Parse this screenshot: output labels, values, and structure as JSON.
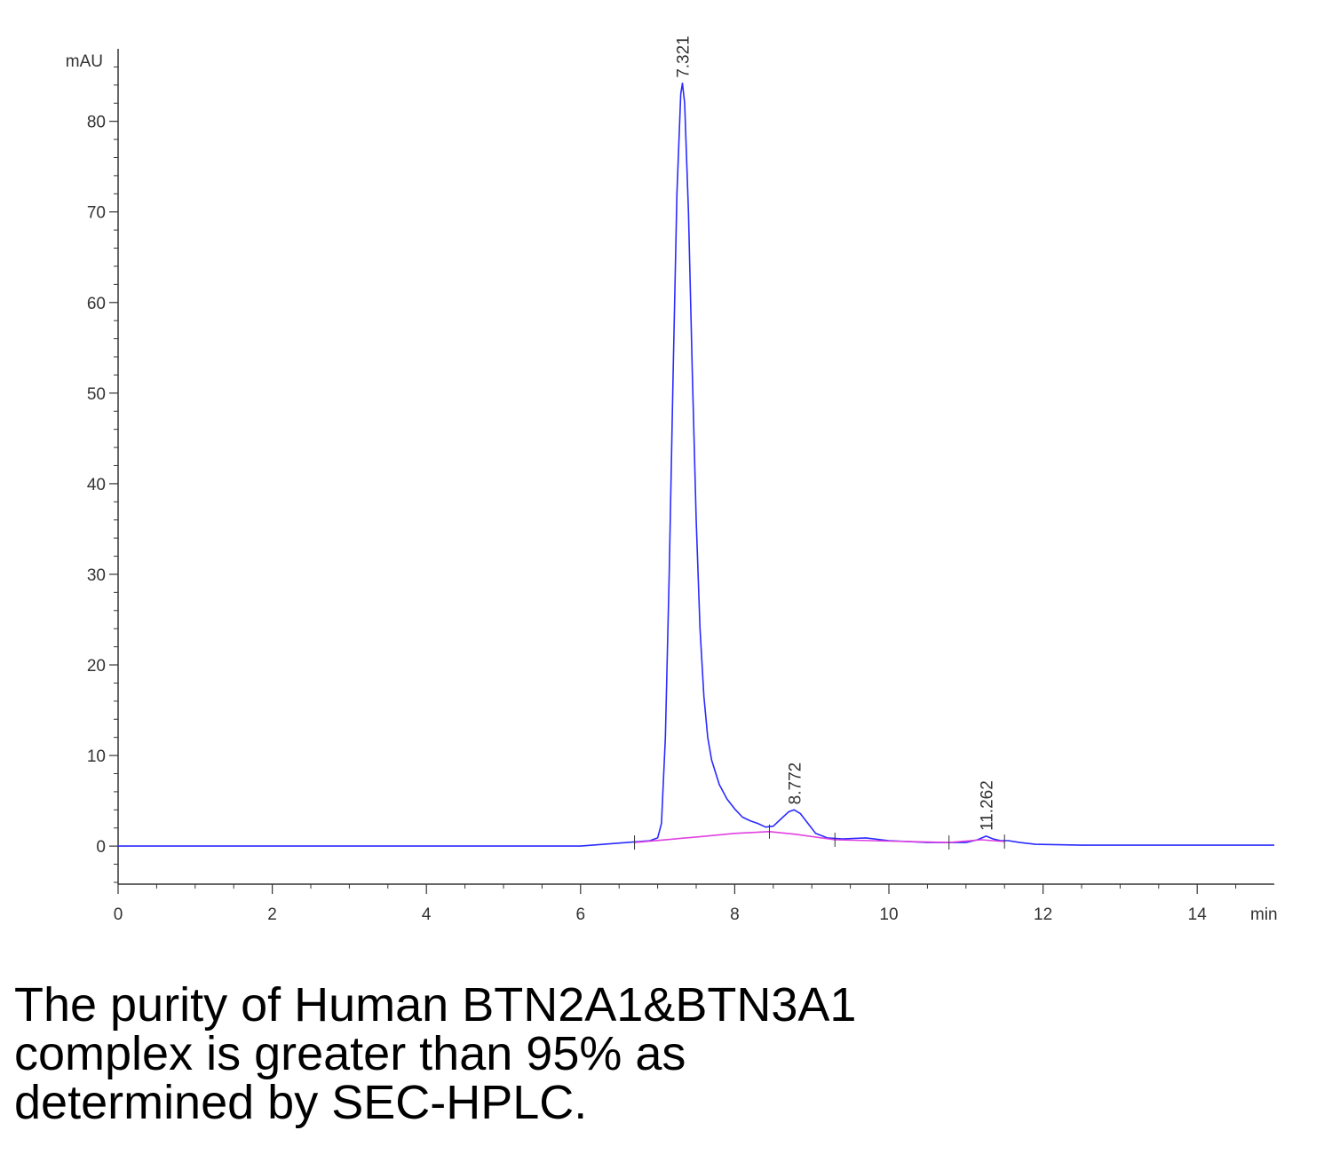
{
  "chart_data": {
    "type": "line",
    "ylabel": "mAU",
    "xlabel": "min",
    "xlim": [
      0,
      15
    ],
    "ylim": [
      -4.2,
      88
    ],
    "xticks": [
      0,
      2,
      4,
      6,
      8,
      10,
      12,
      14
    ],
    "yticks": [
      0,
      10,
      20,
      30,
      40,
      50,
      60,
      70,
      80
    ],
    "series": [
      {
        "color": "#2a2aff",
        "x": [
          0,
          6.0,
          6.3,
          6.6,
          6.9,
          7.0,
          7.05,
          7.1,
          7.15,
          7.2,
          7.25,
          7.3,
          7.321,
          7.35,
          7.4,
          7.45,
          7.5,
          7.55,
          7.6,
          7.65,
          7.7,
          7.8,
          7.9,
          8.0,
          8.1,
          8.2,
          8.3,
          8.4,
          8.5,
          8.6,
          8.7,
          8.772,
          8.85,
          8.95,
          9.05,
          9.2,
          9.4,
          9.7,
          10.0,
          10.5,
          11.0,
          11.15,
          11.262,
          11.35,
          11.45,
          11.55,
          11.7,
          11.9,
          12.5,
          15.0
        ],
        "y": [
          0,
          0,
          0.2,
          0.4,
          0.6,
          0.9,
          2.5,
          12,
          30,
          52,
          72,
          83,
          84.2,
          82,
          70,
          52,
          36,
          24,
          16.5,
          12,
          9.5,
          6.8,
          5.2,
          4.1,
          3.2,
          2.8,
          2.5,
          2.1,
          2.2,
          3.0,
          3.8,
          4.0,
          3.6,
          2.5,
          1.4,
          0.9,
          0.8,
          0.9,
          0.6,
          0.4,
          0.4,
          0.7,
          1.1,
          0.8,
          0.6,
          0.6,
          0.4,
          0.2,
          0.1,
          0.1
        ]
      },
      {
        "color": "#e040e0",
        "x": [
          6.7,
          7.5,
          8.0,
          8.45,
          8.8,
          9.3,
          10.0,
          10.78,
          11.2,
          11.5
        ],
        "y": [
          0.4,
          1.0,
          1.4,
          1.6,
          1.3,
          0.7,
          0.55,
          0.4,
          0.7,
          0.5
        ]
      }
    ],
    "peaks": [
      {
        "label": "7.321",
        "x": 7.321,
        "y": 84.2
      },
      {
        "label": "8.772",
        "x": 8.772,
        "y": 4.0
      },
      {
        "label": "11.262",
        "x": 11.262,
        "y": 1.1
      }
    ],
    "integration_marks": [
      6.7,
      8.45,
      9.3,
      10.78,
      11.5
    ]
  },
  "caption": {
    "line1": "The purity of Human BTN2A1&BTN3A1",
    "line2": "complex is greater than 95% as",
    "line3": "determined by SEC-HPLC."
  }
}
